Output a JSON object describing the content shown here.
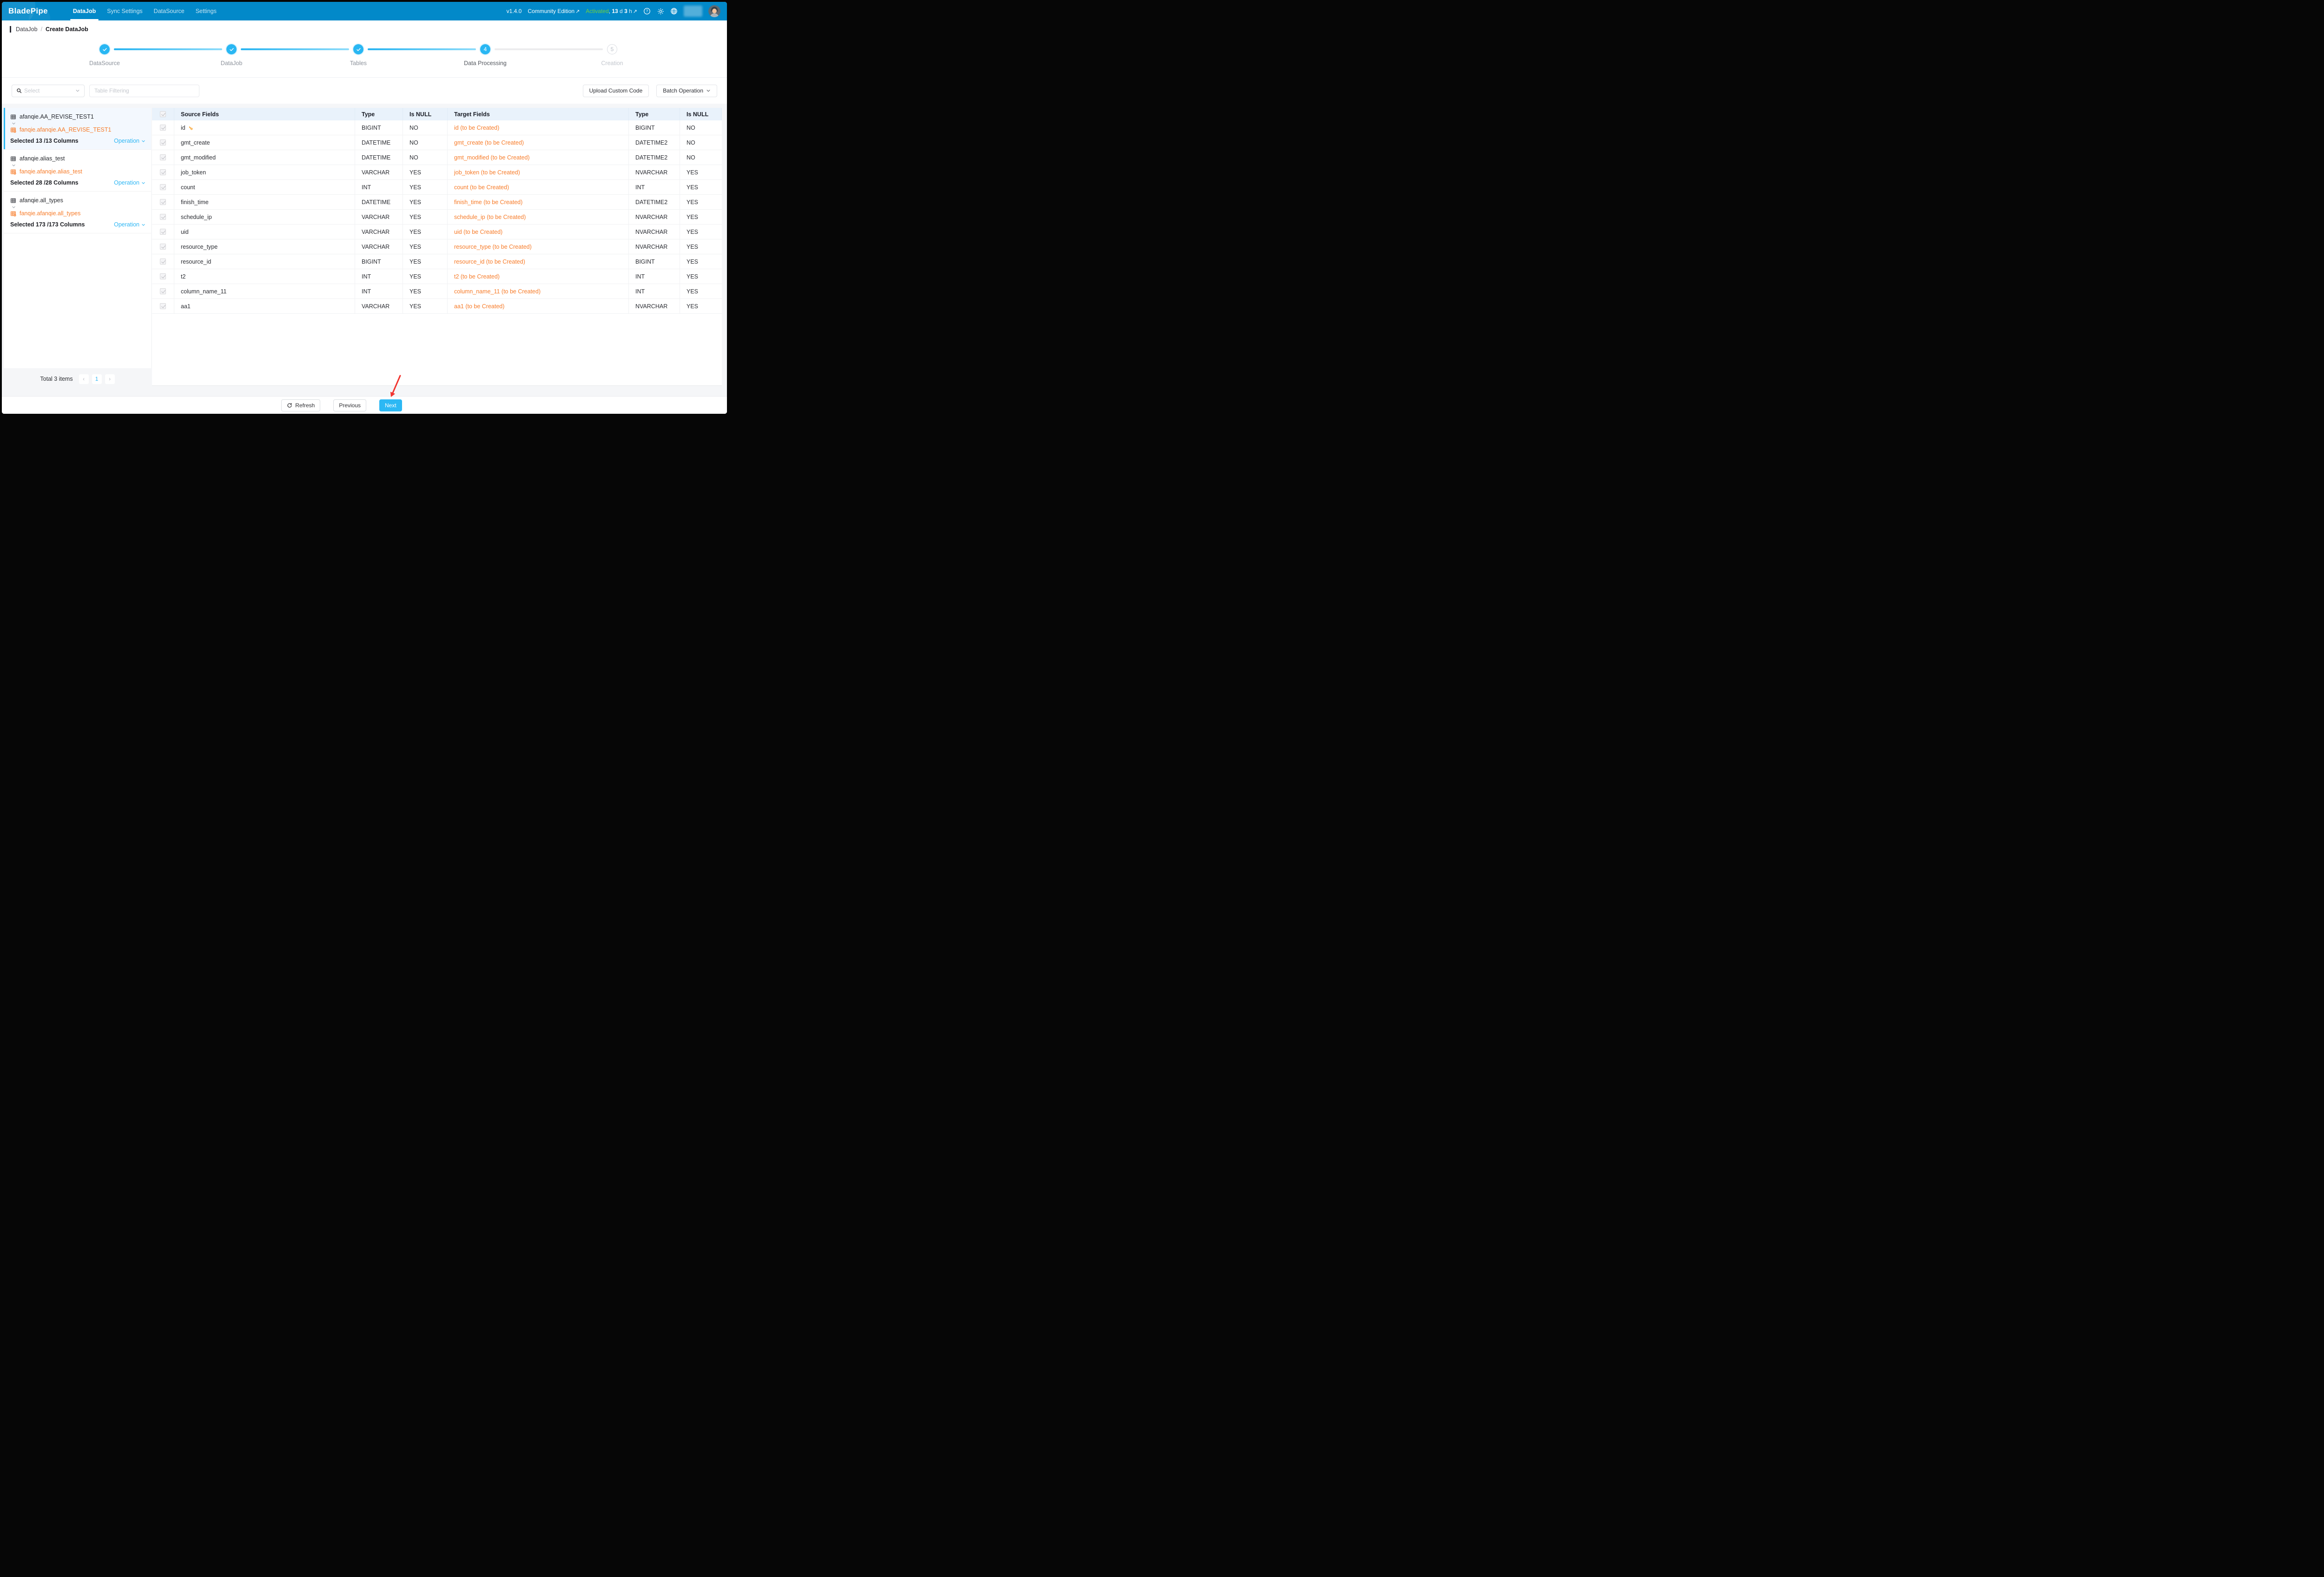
{
  "topbar": {
    "logo": "BladePipe",
    "nav": [
      {
        "label": "DataJob",
        "active": true
      },
      {
        "label": "Sync Settings",
        "active": false
      },
      {
        "label": "DataSource",
        "active": false
      },
      {
        "label": "Settings",
        "active": false
      }
    ],
    "version": "v1.4.0",
    "edition": "Community Edition",
    "external_arrow": "↗",
    "license_status": "Activated",
    "license_sep": ", ",
    "days_value": "13",
    "days_unit": "d",
    "hours_value": "3",
    "hours_unit": "h"
  },
  "breadcrumb": {
    "parent": "DataJob",
    "separator": "/",
    "current": "Create DataJob"
  },
  "stepper": {
    "steps": [
      {
        "label": "DataSource",
        "state": "done"
      },
      {
        "label": "DataJob",
        "state": "done"
      },
      {
        "label": "Tables",
        "state": "done"
      },
      {
        "label": "Data Processing",
        "state": "current",
        "number": "4"
      },
      {
        "label": "Creation",
        "state": "pending",
        "number": "5"
      }
    ]
  },
  "toolbar": {
    "select_placeholder": "Select",
    "filter_placeholder": "Table Filtering",
    "upload_button": "Upload Custom Code",
    "batch_button": "Batch Operation"
  },
  "sidebar": {
    "groups": [
      {
        "source_table": "afanqie.AA_REVISE_TEST1",
        "target_table": "fanqie.afanqie.AA_REVISE_TEST1",
        "selection": "Selected 13 /13 Columns",
        "operation": "Operation",
        "active": true
      },
      {
        "source_table": "afanqie.alias_test",
        "target_table": "fanqie.afanqie.alias_test",
        "selection": "Selected 28 /28 Columns",
        "operation": "Operation",
        "active": false
      },
      {
        "source_table": "afanqie.all_types",
        "target_table": "fanqie.afanqie.all_types",
        "selection": "Selected 173 /173 Columns",
        "operation": "Operation",
        "active": false
      }
    ],
    "total_text": "Total 3 items",
    "current_page": "1",
    "pager_prev": "‹",
    "pager_next": "›"
  },
  "table": {
    "headers": [
      "Source Fields",
      "Type",
      "Is NULL",
      "Target Fields",
      "Type",
      "Is NULL"
    ],
    "rows": [
      {
        "source": "id",
        "primary_key": true,
        "type": "BIGINT",
        "is_null": "NO",
        "target": "id (to be Created)",
        "target_type": "BIGINT",
        "target_is_null": "NO"
      },
      {
        "source": "gmt_create",
        "primary_key": false,
        "type": "DATETIME",
        "is_null": "NO",
        "target": "gmt_create (to be Created)",
        "target_type": "DATETIME2",
        "target_is_null": "NO"
      },
      {
        "source": "gmt_modified",
        "primary_key": false,
        "type": "DATETIME",
        "is_null": "NO",
        "target": "gmt_modified (to be Created)",
        "target_type": "DATETIME2",
        "target_is_null": "NO"
      },
      {
        "source": "job_token",
        "primary_key": false,
        "type": "VARCHAR",
        "is_null": "YES",
        "target": "job_token (to be Created)",
        "target_type": "NVARCHAR",
        "target_is_null": "YES"
      },
      {
        "source": "count",
        "primary_key": false,
        "type": "INT",
        "is_null": "YES",
        "target": "count (to be Created)",
        "target_type": "INT",
        "target_is_null": "YES"
      },
      {
        "source": "finish_time",
        "primary_key": false,
        "type": "DATETIME",
        "is_null": "YES",
        "target": "finish_time (to be Created)",
        "target_type": "DATETIME2",
        "target_is_null": "YES"
      },
      {
        "source": "schedule_ip",
        "primary_key": false,
        "type": "VARCHAR",
        "is_null": "YES",
        "target": "schedule_ip (to be Created)",
        "target_type": "NVARCHAR",
        "target_is_null": "YES"
      },
      {
        "source": "uid",
        "primary_key": false,
        "type": "VARCHAR",
        "is_null": "YES",
        "target": "uid (to be Created)",
        "target_type": "NVARCHAR",
        "target_is_null": "YES"
      },
      {
        "source": "resource_type",
        "primary_key": false,
        "type": "VARCHAR",
        "is_null": "YES",
        "target": "resource_type (to be Created)",
        "target_type": "NVARCHAR",
        "target_is_null": "YES"
      },
      {
        "source": "resource_id",
        "primary_key": false,
        "type": "BIGINT",
        "is_null": "YES",
        "target": "resource_id (to be Created)",
        "target_type": "BIGINT",
        "target_is_null": "YES"
      },
      {
        "source": "t2",
        "primary_key": false,
        "type": "INT",
        "is_null": "YES",
        "target": "t2 (to be Created)",
        "target_type": "INT",
        "target_is_null": "YES"
      },
      {
        "source": "column_name_11",
        "primary_key": false,
        "type": "INT",
        "is_null": "YES",
        "target": "column_name_11 (to be Created)",
        "target_type": "INT",
        "target_is_null": "YES"
      },
      {
        "source": "aa1",
        "primary_key": false,
        "type": "VARCHAR",
        "is_null": "YES",
        "target": "aa1 (to be Created)",
        "target_type": "NVARCHAR",
        "target_is_null": "YES"
      }
    ]
  },
  "footer": {
    "refresh": "Refresh",
    "previous": "Previous",
    "next": "Next"
  },
  "icons": {
    "search": "magnifier",
    "help": "question-circle",
    "theme": "sun",
    "language": "globe",
    "primary_key": "key",
    "refresh": "circular-arrow",
    "pagination_prev": "‹",
    "pagination_next": "›",
    "chevron_down": "⌄",
    "external_link": "↗",
    "annotation": "red-arrow"
  },
  "colors": {
    "brand_blue": "#0289c9",
    "accent_blue": "#29b7f3",
    "orange": "#f77b28",
    "green": "#72d13c",
    "table_header_bg": "#e9f2fb",
    "selected_group_bg": "#f3f8fe"
  }
}
